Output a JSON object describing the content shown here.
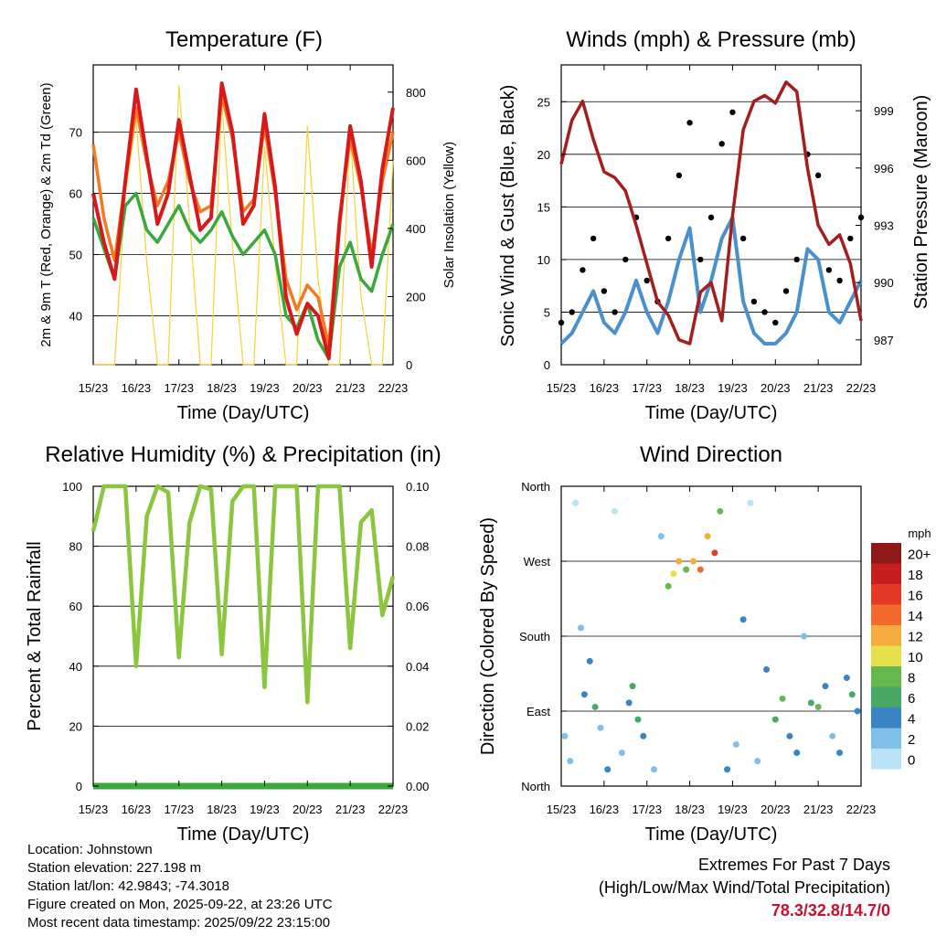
{
  "colors": {
    "t2m": "#d7191c",
    "t9m": "#f47a20",
    "td": "#3aa83a",
    "solar": "#f5d33b",
    "gust": "#000000",
    "wind": "#4a90cf",
    "pressure": "#a61d1d",
    "rh": "#8cc63f",
    "precip": "#3aa83a",
    "extremes": "#c8102e",
    "speed_scale": [
      "#b9e3f7",
      "#7fbfe8",
      "#3b84c4",
      "#4aa866",
      "#64b84e",
      "#e6e04a",
      "#f7ac3f",
      "#f26b2d",
      "#e23a26",
      "#c41e1e",
      "#8e1717"
    ]
  },
  "chart_data": [
    {
      "id": "temperature",
      "type": "line",
      "title": "Temperature (F)",
      "xlabel": "Time (Day/UTC)",
      "ylabel": "2m & 9m T (Red, Orange) & 2m Td (Green)",
      "y2label": "Solar Insolation (Yellow)",
      "xticks": [
        "15/23",
        "16/23",
        "17/23",
        "18/23",
        "19/23",
        "20/23",
        "21/23",
        "22/23"
      ],
      "xlim": [
        0,
        168
      ],
      "ylim": [
        32,
        81
      ],
      "yticks": [
        40,
        50,
        60,
        70
      ],
      "y2lim": [
        0,
        880
      ],
      "y2ticks": [
        0,
        200,
        400,
        600,
        800
      ],
      "series": [
        {
          "name": "2m T",
          "color_key": "t2m",
          "x": [
            0,
            6,
            12,
            18,
            24,
            30,
            36,
            42,
            48,
            54,
            60,
            66,
            72,
            78,
            84,
            90,
            96,
            102,
            108,
            114,
            120,
            126,
            132,
            138,
            144,
            150,
            156,
            162,
            168
          ],
          "y": [
            60,
            52,
            46,
            62,
            77,
            66,
            55,
            60,
            72,
            63,
            54,
            56,
            78,
            70,
            55,
            58,
            73,
            61,
            43,
            37,
            42,
            40,
            33,
            55,
            71,
            62,
            48,
            64,
            74
          ]
        },
        {
          "name": "9m T",
          "color_key": "t9m",
          "x": [
            0,
            6,
            12,
            18,
            24,
            30,
            36,
            42,
            48,
            54,
            60,
            66,
            72,
            78,
            84,
            90,
            96,
            102,
            108,
            114,
            120,
            126,
            132,
            138,
            144,
            150,
            156,
            162,
            168
          ],
          "y": [
            68,
            56,
            49,
            62,
            74,
            65,
            58,
            62,
            70,
            62,
            57,
            58,
            76,
            69,
            57,
            59,
            71,
            60,
            46,
            41,
            45,
            43,
            35,
            56,
            69,
            61,
            50,
            62,
            70
          ]
        },
        {
          "name": "2m Td",
          "color_key": "td",
          "x": [
            0,
            6,
            12,
            18,
            24,
            30,
            36,
            42,
            48,
            54,
            60,
            66,
            72,
            78,
            84,
            90,
            96,
            102,
            108,
            114,
            120,
            126,
            132,
            138,
            144,
            150,
            156,
            162,
            168
          ],
          "y": [
            56,
            51,
            46,
            58,
            60,
            54,
            52,
            55,
            58,
            54,
            52,
            54,
            57,
            53,
            50,
            52,
            54,
            50,
            40,
            38,
            42,
            36,
            33,
            48,
            52,
            46,
            44,
            50,
            55
          ]
        },
        {
          "name": "Solar Insolation",
          "color_key": "solar",
          "axis": "y2",
          "x": [
            0,
            6,
            12,
            18,
            24,
            30,
            36,
            42,
            48,
            54,
            60,
            66,
            72,
            78,
            84,
            90,
            96,
            102,
            108,
            114,
            120,
            126,
            132,
            138,
            144,
            150,
            156,
            162,
            168
          ],
          "y": [
            0,
            0,
            0,
            500,
            720,
            300,
            0,
            0,
            820,
            420,
            0,
            0,
            770,
            350,
            0,
            0,
            640,
            300,
            0,
            0,
            700,
            250,
            0,
            0,
            680,
            200,
            0,
            0,
            600
          ]
        }
      ]
    },
    {
      "id": "winds",
      "type": "scatter",
      "title": "Winds (mph) & Pressure (mb)",
      "xlabel": "Time (Day/UTC)",
      "ylabel": "Sonic Wind & Gust (Blue, Black)",
      "y2label": "Station Pressure (Maroon)",
      "xticks": [
        "15/23",
        "16/23",
        "17/23",
        "18/23",
        "19/23",
        "20/23",
        "21/23",
        "22/23"
      ],
      "xlim": [
        0,
        168
      ],
      "ylim": [
        0,
        28.5
      ],
      "yticks": [
        0,
        5,
        10,
        15,
        20,
        25
      ],
      "y2lim": [
        985.7,
        1001.4
      ],
      "y2ticks": [
        987,
        990,
        993,
        996,
        999
      ],
      "series": [
        {
          "name": "Gust",
          "color_key": "gust",
          "x": [
            0,
            6,
            12,
            18,
            24,
            30,
            36,
            42,
            48,
            54,
            60,
            66,
            72,
            78,
            84,
            90,
            96,
            102,
            108,
            114,
            120,
            126,
            132,
            138,
            144,
            150,
            156,
            162,
            168
          ],
          "y": [
            4,
            5,
            9,
            12,
            7,
            5,
            10,
            14,
            8,
            6,
            12,
            18,
            23,
            10,
            14,
            21,
            24,
            12,
            6,
            5,
            4,
            7,
            10,
            20,
            18,
            9,
            8,
            12,
            14
          ]
        },
        {
          "name": "Wind",
          "color_key": "wind",
          "x": [
            0,
            6,
            12,
            18,
            24,
            30,
            36,
            42,
            48,
            54,
            60,
            66,
            72,
            78,
            84,
            90,
            96,
            102,
            108,
            114,
            120,
            126,
            132,
            138,
            144,
            150,
            156,
            162,
            168
          ],
          "y": [
            2,
            3,
            5,
            7,
            4,
            3,
            5,
            8,
            5,
            3,
            6,
            10,
            13,
            5,
            8,
            12,
            14,
            6,
            3,
            2,
            2,
            3,
            5,
            11,
            10,
            5,
            4,
            6,
            8
          ]
        },
        {
          "name": "Pressure",
          "color_key": "pressure",
          "axis": "y2",
          "x": [
            0,
            6,
            12,
            18,
            24,
            30,
            36,
            42,
            48,
            54,
            60,
            66,
            72,
            78,
            84,
            90,
            96,
            102,
            108,
            114,
            120,
            126,
            132,
            138,
            144,
            150,
            156,
            162,
            168
          ],
          "y": [
            996.2,
            998.5,
            999.5,
            997.5,
            995.8,
            995.5,
            994.8,
            993,
            991,
            989,
            988.3,
            987,
            986.8,
            989.5,
            990,
            988,
            993.5,
            998,
            999.5,
            999.8,
            999.4,
            1000.5,
            1000,
            996,
            993,
            992,
            992.5,
            991,
            988
          ]
        }
      ]
    },
    {
      "id": "humidity",
      "type": "line",
      "title": "Relative Humidity (%) & Precipitation (in)",
      "xlabel": "Time (Day/UTC)",
      "ylabel": "Percent & Total Rainfall",
      "xticks": [
        "15/23",
        "16/23",
        "17/23",
        "18/23",
        "19/23",
        "20/23",
        "21/23",
        "22/23"
      ],
      "xlim": [
        0,
        168
      ],
      "ylim": [
        0,
        100
      ],
      "yticks": [
        0,
        20,
        40,
        60,
        80,
        100
      ],
      "y2lim": [
        0,
        0.1
      ],
      "y2ticks": [
        "0.00",
        "0.02",
        "0.04",
        "0.06",
        "0.08",
        "0.10"
      ],
      "series": [
        {
          "name": "Relative Humidity",
          "color_key": "rh",
          "x": [
            0,
            6,
            12,
            18,
            24,
            30,
            36,
            42,
            48,
            54,
            60,
            66,
            72,
            78,
            84,
            90,
            96,
            102,
            108,
            114,
            120,
            126,
            132,
            138,
            144,
            150,
            156,
            162,
            168
          ],
          "y": [
            85,
            100,
            100,
            100,
            40,
            90,
            100,
            98,
            43,
            88,
            100,
            99,
            44,
            95,
            100,
            100,
            33,
            100,
            100,
            100,
            28,
            100,
            100,
            100,
            46,
            88,
            92,
            57,
            70
          ]
        },
        {
          "name": "Total Precipitation",
          "color_key": "precip",
          "axis": "y2",
          "x": [
            0,
            168
          ],
          "y": [
            0,
            0
          ]
        }
      ]
    },
    {
      "id": "direction",
      "type": "scatter",
      "title": "Wind Direction",
      "xlabel": "Time (Day/UTC)",
      "ylabel": "Direction (Colored By Speed)",
      "xticks": [
        "15/23",
        "16/23",
        "17/23",
        "18/23",
        "19/23",
        "20/23",
        "21/23",
        "22/23"
      ],
      "xlim": [
        0,
        168
      ],
      "ylim": [
        0,
        360
      ],
      "ytick_values": [
        0,
        90,
        180,
        270,
        360
      ],
      "yticks": [
        "North",
        "East",
        "South",
        "West",
        "North"
      ],
      "colorbar": {
        "title": "mph",
        "labels": [
          "20+",
          "18",
          "16",
          "14",
          "12",
          "10",
          "8",
          "6",
          "4",
          "2",
          "0"
        ]
      },
      "points": [
        {
          "x": 2,
          "dir": 60,
          "spd": 2
        },
        {
          "x": 5,
          "dir": 30,
          "spd": 3
        },
        {
          "x": 8,
          "dir": 340,
          "spd": 1
        },
        {
          "x": 11,
          "dir": 190,
          "spd": 3
        },
        {
          "x": 13,
          "dir": 110,
          "spd": 5
        },
        {
          "x": 16,
          "dir": 150,
          "spd": 4
        },
        {
          "x": 19,
          "dir": 95,
          "spd": 6
        },
        {
          "x": 22,
          "dir": 70,
          "spd": 3
        },
        {
          "x": 26,
          "dir": 20,
          "spd": 4
        },
        {
          "x": 30,
          "dir": 330,
          "spd": 1
        },
        {
          "x": 34,
          "dir": 40,
          "spd": 2
        },
        {
          "x": 38,
          "dir": 100,
          "spd": 5
        },
        {
          "x": 40,
          "dir": 120,
          "spd": 6
        },
        {
          "x": 43,
          "dir": 80,
          "spd": 7
        },
        {
          "x": 46,
          "dir": 60,
          "spd": 4
        },
        {
          "x": 52,
          "dir": 20,
          "spd": 3
        },
        {
          "x": 56,
          "dir": 300,
          "spd": 2
        },
        {
          "x": 60,
          "dir": 240,
          "spd": 8
        },
        {
          "x": 63,
          "dir": 255,
          "spd": 11
        },
        {
          "x": 66,
          "dir": 270,
          "spd": 13
        },
        {
          "x": 70,
          "dir": 260,
          "spd": 9
        },
        {
          "x": 74,
          "dir": 270,
          "spd": 12
        },
        {
          "x": 78,
          "dir": 260,
          "spd": 15
        },
        {
          "x": 82,
          "dir": 300,
          "spd": 12
        },
        {
          "x": 86,
          "dir": 280,
          "spd": 16
        },
        {
          "x": 89,
          "dir": 330,
          "spd": 8
        },
        {
          "x": 93,
          "dir": 20,
          "spd": 4
        },
        {
          "x": 98,
          "dir": 50,
          "spd": 3
        },
        {
          "x": 102,
          "dir": 200,
          "spd": 4
        },
        {
          "x": 106,
          "dir": 340,
          "spd": 1
        },
        {
          "x": 110,
          "dir": 30,
          "spd": 2
        },
        {
          "x": 115,
          "dir": 140,
          "spd": 4
        },
        {
          "x": 120,
          "dir": 80,
          "spd": 6
        },
        {
          "x": 124,
          "dir": 105,
          "spd": 9
        },
        {
          "x": 128,
          "dir": 60,
          "spd": 4
        },
        {
          "x": 132,
          "dir": 40,
          "spd": 5
        },
        {
          "x": 136,
          "dir": 180,
          "spd": 3
        },
        {
          "x": 140,
          "dir": 100,
          "spd": 6
        },
        {
          "x": 144,
          "dir": 95,
          "spd": 8
        },
        {
          "x": 148,
          "dir": 120,
          "spd": 4
        },
        {
          "x": 152,
          "dir": 60,
          "spd": 3
        },
        {
          "x": 156,
          "dir": 40,
          "spd": 5
        },
        {
          "x": 160,
          "dir": 130,
          "spd": 4
        },
        {
          "x": 163,
          "dir": 110,
          "spd": 7
        },
        {
          "x": 166,
          "dir": 90,
          "spd": 5
        }
      ]
    }
  ],
  "info": {
    "location": "Location: Johnstown",
    "elevation": "Station elevation: 227.198 m",
    "latlon": "Station lat/lon: 42.9843; -74.3018",
    "created": "Figure created on Mon, 2025-09-22, at 23:26 UTC",
    "recent": "Most recent data timestamp: 2025/09/22 23:15:00"
  },
  "extremes": {
    "title": "Extremes For Past 7 Days",
    "subtitle": "(High/Low/Max Wind/Total Precipitation)",
    "values": "78.3/32.8/14.7/0"
  }
}
